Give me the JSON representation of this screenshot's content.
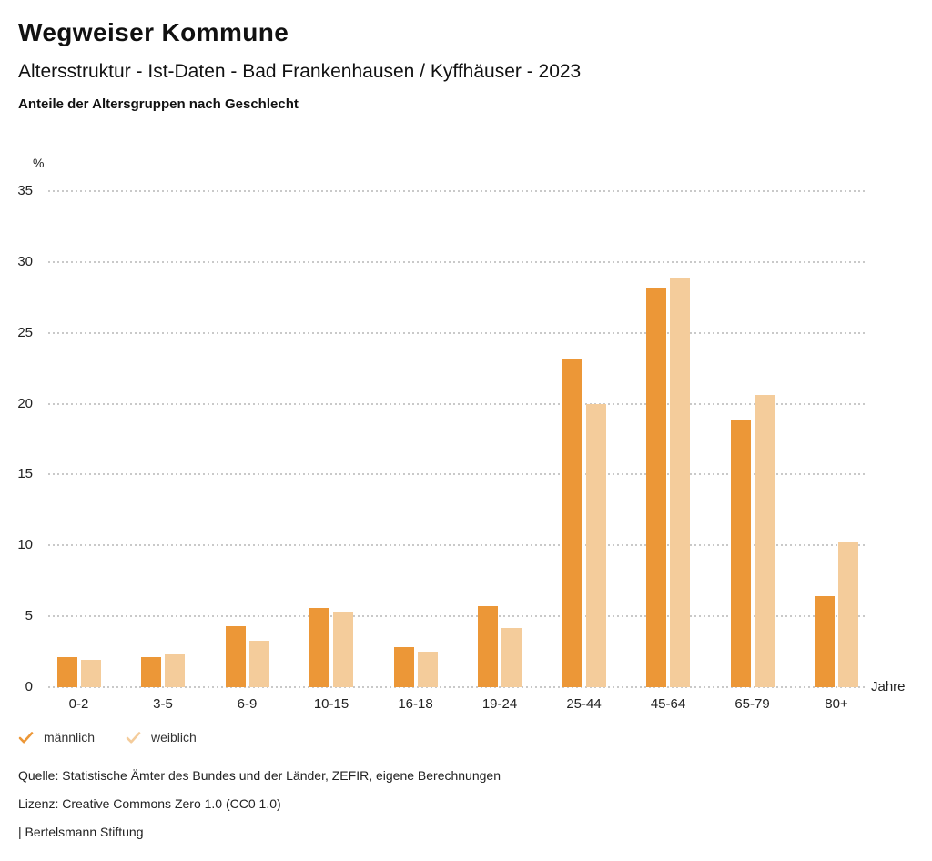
{
  "header": {
    "title": "Wegweiser Kommune",
    "subtitle": "Altersstruktur - Ist-Daten - Bad Frankenhausen / Kyffhäuser - 2023",
    "caption": "Anteile der Altersgruppen nach Geschlecht"
  },
  "chart_data": {
    "type": "bar",
    "title": "Anteile der Altersgruppen nach Geschlecht",
    "categories": [
      "0-2",
      "3-5",
      "6-9",
      "10-15",
      "16-18",
      "19-24",
      "25-44",
      "45-64",
      "65-79",
      "80+"
    ],
    "series": [
      {
        "name": "männlich",
        "color": "#EC9737",
        "values": [
          2.1,
          2.1,
          4.3,
          5.6,
          2.8,
          5.7,
          23.2,
          28.2,
          18.8,
          6.4
        ]
      },
      {
        "name": "weiblich",
        "color": "#F4CC9B",
        "values": [
          1.9,
          2.3,
          3.3,
          5.3,
          2.5,
          4.2,
          20.0,
          28.9,
          20.6,
          10.2
        ]
      }
    ],
    "ylabel": "%",
    "xlabel": "Jahre",
    "ylim": [
      0,
      35
    ],
    "ytick_step": 5,
    "yticks": [
      0,
      5,
      10,
      15,
      20,
      25,
      30,
      35
    ],
    "grid": "horizontal-dotted",
    "legend_position": "bottom-left"
  },
  "footer": {
    "source": "Quelle: Statistische Ämter des Bundes und der Länder, ZEFIR, eigene Berechnungen",
    "license": "Lizenz: Creative Commons Zero 1.0 (CC0 1.0)",
    "attribution": "| Bertelsmann Stiftung"
  }
}
